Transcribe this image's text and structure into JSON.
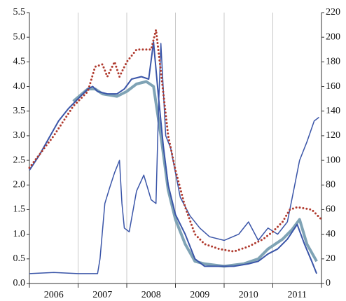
{
  "chart_data": {
    "type": "line",
    "xlim": [
      2006,
      2012
    ],
    "xticks": [
      2006,
      2007,
      2008,
      2009,
      2010,
      2011,
      2012
    ],
    "categories": [
      "2006",
      "2007",
      "2008",
      "2009",
      "2010",
      "2011"
    ],
    "ylim": [
      0,
      5.5
    ],
    "yticks": [
      {
        "value": 0,
        "label": "0.0"
      },
      0.5,
      {
        "value": 1,
        "label": "1.0"
      },
      1.5,
      {
        "value": 2,
        "label": "2.0"
      },
      2.5,
      {
        "value": 3,
        "label": "3.0"
      },
      3.5,
      {
        "value": 4,
        "label": "4.0"
      },
      4.5,
      {
        "value": 5,
        "label": "5.0"
      },
      5.5
    ],
    "y2lim": [
      0,
      220
    ],
    "y2ticks": [
      0,
      20,
      40,
      60,
      80,
      100,
      120,
      140,
      160,
      180,
      200,
      220
    ],
    "grid": true,
    "series": [
      {
        "color": "#3a55a8",
        "style": "solid",
        "width": 2,
        "x": [
          2006.0,
          2006.2,
          2006.4,
          2006.6,
          2006.8,
          2007.0,
          2007.2,
          2007.3,
          2007.4,
          2007.6,
          2007.8,
          2007.95,
          2008.1,
          2008.3,
          2008.45,
          2008.55,
          2008.65,
          2008.75,
          2008.85,
          2009.0,
          2009.2,
          2009.4,
          2009.6,
          2009.9,
          2010.2,
          2010.5,
          2010.7,
          2010.9,
          2011.1,
          2011.3,
          2011.5,
          2011.65,
          2011.8,
          2011.9
        ],
        "values": [
          2.3,
          2.6,
          2.95,
          3.3,
          3.55,
          3.75,
          3.95,
          4.0,
          3.9,
          3.85,
          3.85,
          3.95,
          4.15,
          4.2,
          4.15,
          4.9,
          3.8,
          2.8,
          2.0,
          1.4,
          1.0,
          0.5,
          0.35,
          0.35,
          0.35,
          0.4,
          0.45,
          0.6,
          0.7,
          0.9,
          1.2,
          0.8,
          0.45,
          0.2
        ]
      },
      {
        "color": "#7fa3b5",
        "style": "solid",
        "width": 4,
        "x": [
          2006.9,
          2007.2,
          2007.35,
          2007.5,
          2007.8,
          2008.0,
          2008.2,
          2008.4,
          2008.55,
          2008.7,
          2008.85,
          2009.0,
          2009.2,
          2009.4,
          2009.6,
          2010.0,
          2010.4,
          2010.7,
          2010.9,
          2011.2,
          2011.4,
          2011.55,
          2011.7,
          2011.9
        ],
        "values": [
          3.7,
          3.95,
          3.95,
          3.85,
          3.8,
          3.9,
          4.05,
          4.1,
          4.0,
          3.0,
          1.9,
          1.3,
          0.8,
          0.45,
          0.4,
          0.35,
          0.4,
          0.5,
          0.7,
          0.9,
          1.1,
          1.3,
          0.8,
          0.45
        ]
      },
      {
        "color": "#b03a2e",
        "style": "dotted",
        "width": 3,
        "x": [
          2006.0,
          2006.5,
          2006.9,
          2007.2,
          2007.35,
          2007.5,
          2007.6,
          2007.75,
          2007.85,
          2008.0,
          2008.2,
          2008.5,
          2008.6,
          2008.7,
          2008.85,
          2009.0,
          2009.2,
          2009.4,
          2009.6,
          2009.9,
          2010.2,
          2010.5,
          2010.8,
          2011.0,
          2011.2,
          2011.35,
          2011.5,
          2011.8,
          2012.0
        ],
        "values": [
          2.35,
          3.0,
          3.6,
          3.9,
          4.4,
          4.45,
          4.2,
          4.5,
          4.2,
          4.5,
          4.75,
          4.75,
          5.15,
          4.3,
          3.0,
          2.3,
          1.55,
          1.0,
          0.8,
          0.7,
          0.65,
          0.75,
          0.9,
          1.05,
          1.25,
          1.5,
          1.55,
          1.5,
          1.3
        ]
      },
      {
        "color": "#3a55a8",
        "style": "solid",
        "width": 1.5,
        "axis": "y2",
        "x": [
          2006.0,
          2006.5,
          2007.0,
          2007.4,
          2007.45,
          2007.55,
          2007.65,
          2007.75,
          2007.85,
          2007.9,
          2007.95,
          2008.05,
          2008.2,
          2008.35,
          2008.5,
          2008.6,
          2008.65,
          2008.7,
          2008.8,
          2008.9,
          2009.0,
          2009.1,
          2009.3,
          2009.5,
          2009.7,
          2010.0,
          2010.3,
          2010.5,
          2010.7,
          2010.9,
          2011.1,
          2011.3,
          2011.45,
          2011.55,
          2011.7,
          2011.85,
          2011.95
        ],
        "values": [
          8,
          9,
          8,
          8,
          20,
          65,
          78,
          90,
          100,
          65,
          45,
          42,
          75,
          88,
          68,
          65,
          140,
          195,
          120,
          110,
          90,
          70,
          55,
          45,
          38,
          35,
          40,
          50,
          35,
          45,
          40,
          50,
          80,
          100,
          115,
          132,
          135
        ]
      }
    ]
  }
}
